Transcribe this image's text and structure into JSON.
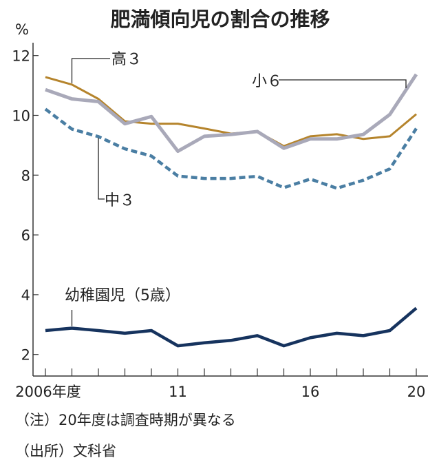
{
  "chart_data": {
    "type": "line",
    "title": "肥満傾向児の割合の推移",
    "ylabel": "%",
    "ylim": [
      1.5,
      12.6
    ],
    "yticks": [
      "2",
      "4",
      "6",
      "8",
      "10",
      "12"
    ],
    "x": [
      2006,
      2007,
      2008,
      2009,
      2010,
      2011,
      2012,
      2013,
      2014,
      2015,
      2016,
      2017,
      2018,
      2019,
      2020
    ],
    "xticks": [
      {
        "x": 2006,
        "label": "2006年度"
      },
      {
        "x": 2011,
        "label": "11"
      },
      {
        "x": 2016,
        "label": "16"
      },
      {
        "x": 2020,
        "label": "20"
      }
    ],
    "grid": false,
    "series": [
      {
        "name": "高３",
        "color": "#b5842c",
        "style": "solid",
        "values": [
          11.28,
          11.03,
          10.55,
          9.8,
          9.72,
          9.72,
          9.56,
          9.39,
          9.46,
          8.97,
          9.3,
          9.37,
          9.21,
          9.3,
          10.04
        ]
      },
      {
        "name": "小６",
        "color": "#a9a9b9",
        "style": "solid",
        "values": [
          10.86,
          10.55,
          10.46,
          9.72,
          9.96,
          8.8,
          9.3,
          9.36,
          9.46,
          8.9,
          9.21,
          9.21,
          9.36,
          10.03,
          11.37
        ]
      },
      {
        "name": "中３",
        "color": "#4a7ea3",
        "style": "dashed",
        "values": [
          10.21,
          9.54,
          9.29,
          8.88,
          8.64,
          7.97,
          7.89,
          7.89,
          7.96,
          7.58,
          7.87,
          7.56,
          7.83,
          8.21,
          9.56
        ]
      },
      {
        "name": "幼稚園児（5歳）",
        "color": "#16335e",
        "style": "solid",
        "values": [
          2.8,
          2.88,
          2.8,
          2.71,
          2.8,
          2.29,
          2.39,
          2.47,
          2.63,
          2.29,
          2.56,
          2.71,
          2.63,
          2.8,
          3.55
        ]
      }
    ],
    "notes": [
      "（注）20年度は調査時期が異なる",
      "（出所）文科省"
    ]
  }
}
